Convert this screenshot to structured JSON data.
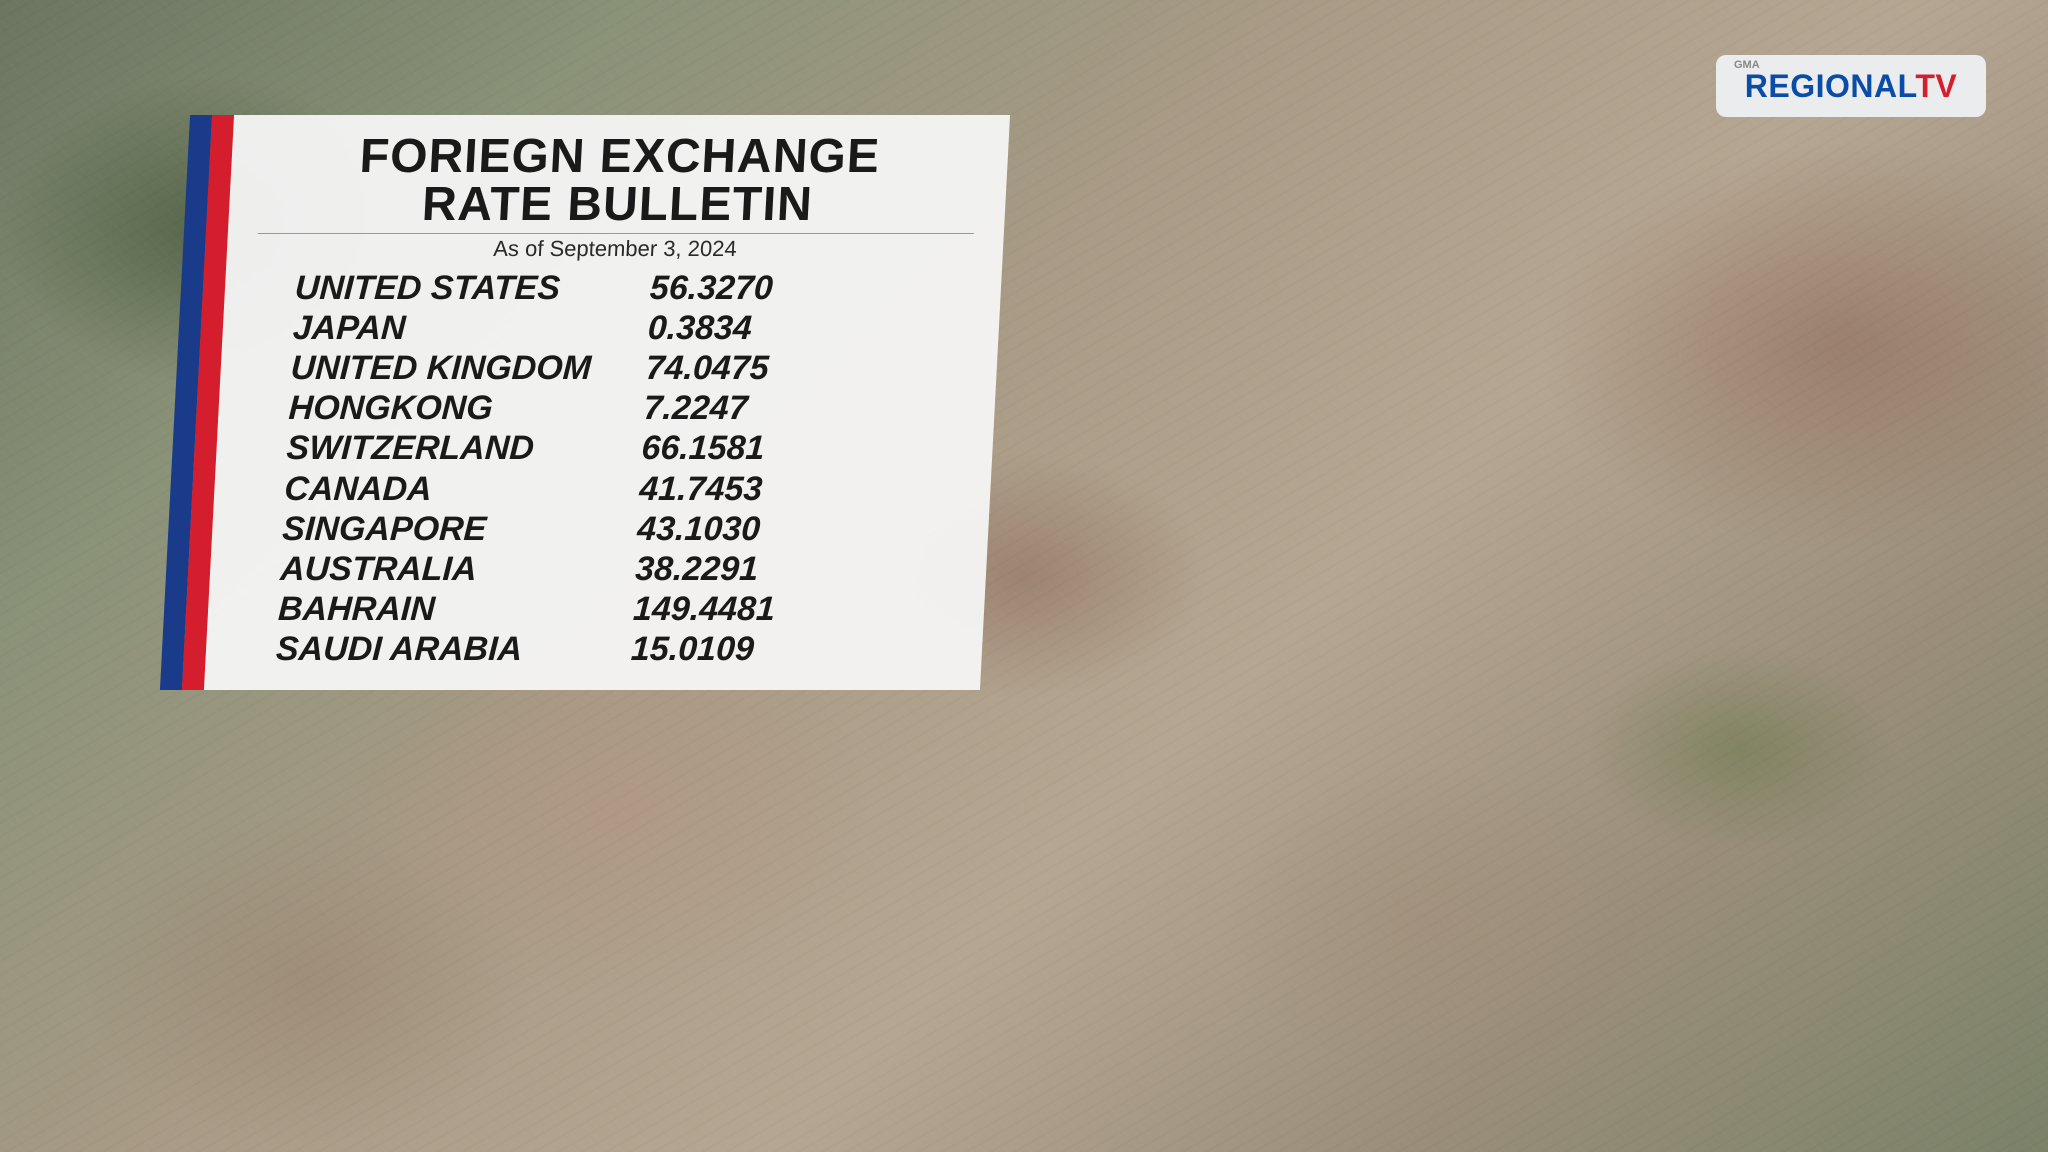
{
  "bulletin": {
    "title_line1": "FORIEGN EXCHANGE",
    "title_line2": "RATE BULLETIN",
    "asof": "As of September 3, 2024",
    "rows": [
      {
        "country": "UNITED STATES",
        "rate": "56.3270"
      },
      {
        "country": "JAPAN",
        "rate": "0.3834"
      },
      {
        "country": "UNITED KINGDOM",
        "rate": "74.0475"
      },
      {
        "country": "HONGKONG",
        "rate": "7.2247"
      },
      {
        "country": "SWITZERLAND",
        "rate": "66.1581"
      },
      {
        "country": "CANADA",
        "rate": "41.7453"
      },
      {
        "country": "SINGAPORE",
        "rate": "43.1030"
      },
      {
        "country": "AUSTRALIA",
        "rate": "38.2291"
      },
      {
        "country": "BAHRAIN",
        "rate": "149.4481"
      },
      {
        "country": "SAUDI ARABIA",
        "rate": "15.0109"
      }
    ]
  },
  "logo": {
    "gma": "GMA",
    "regional": "REGIONAL",
    "tv": "TV"
  },
  "colors": {
    "blue_stripe": "#1a3a8a",
    "red_stripe": "#d41e2e",
    "panel_bg": "rgba(245,245,245,0.95)",
    "text": "#1a1a1a",
    "logo_blue": "#0a4da8",
    "logo_red": "#d41e2e"
  }
}
